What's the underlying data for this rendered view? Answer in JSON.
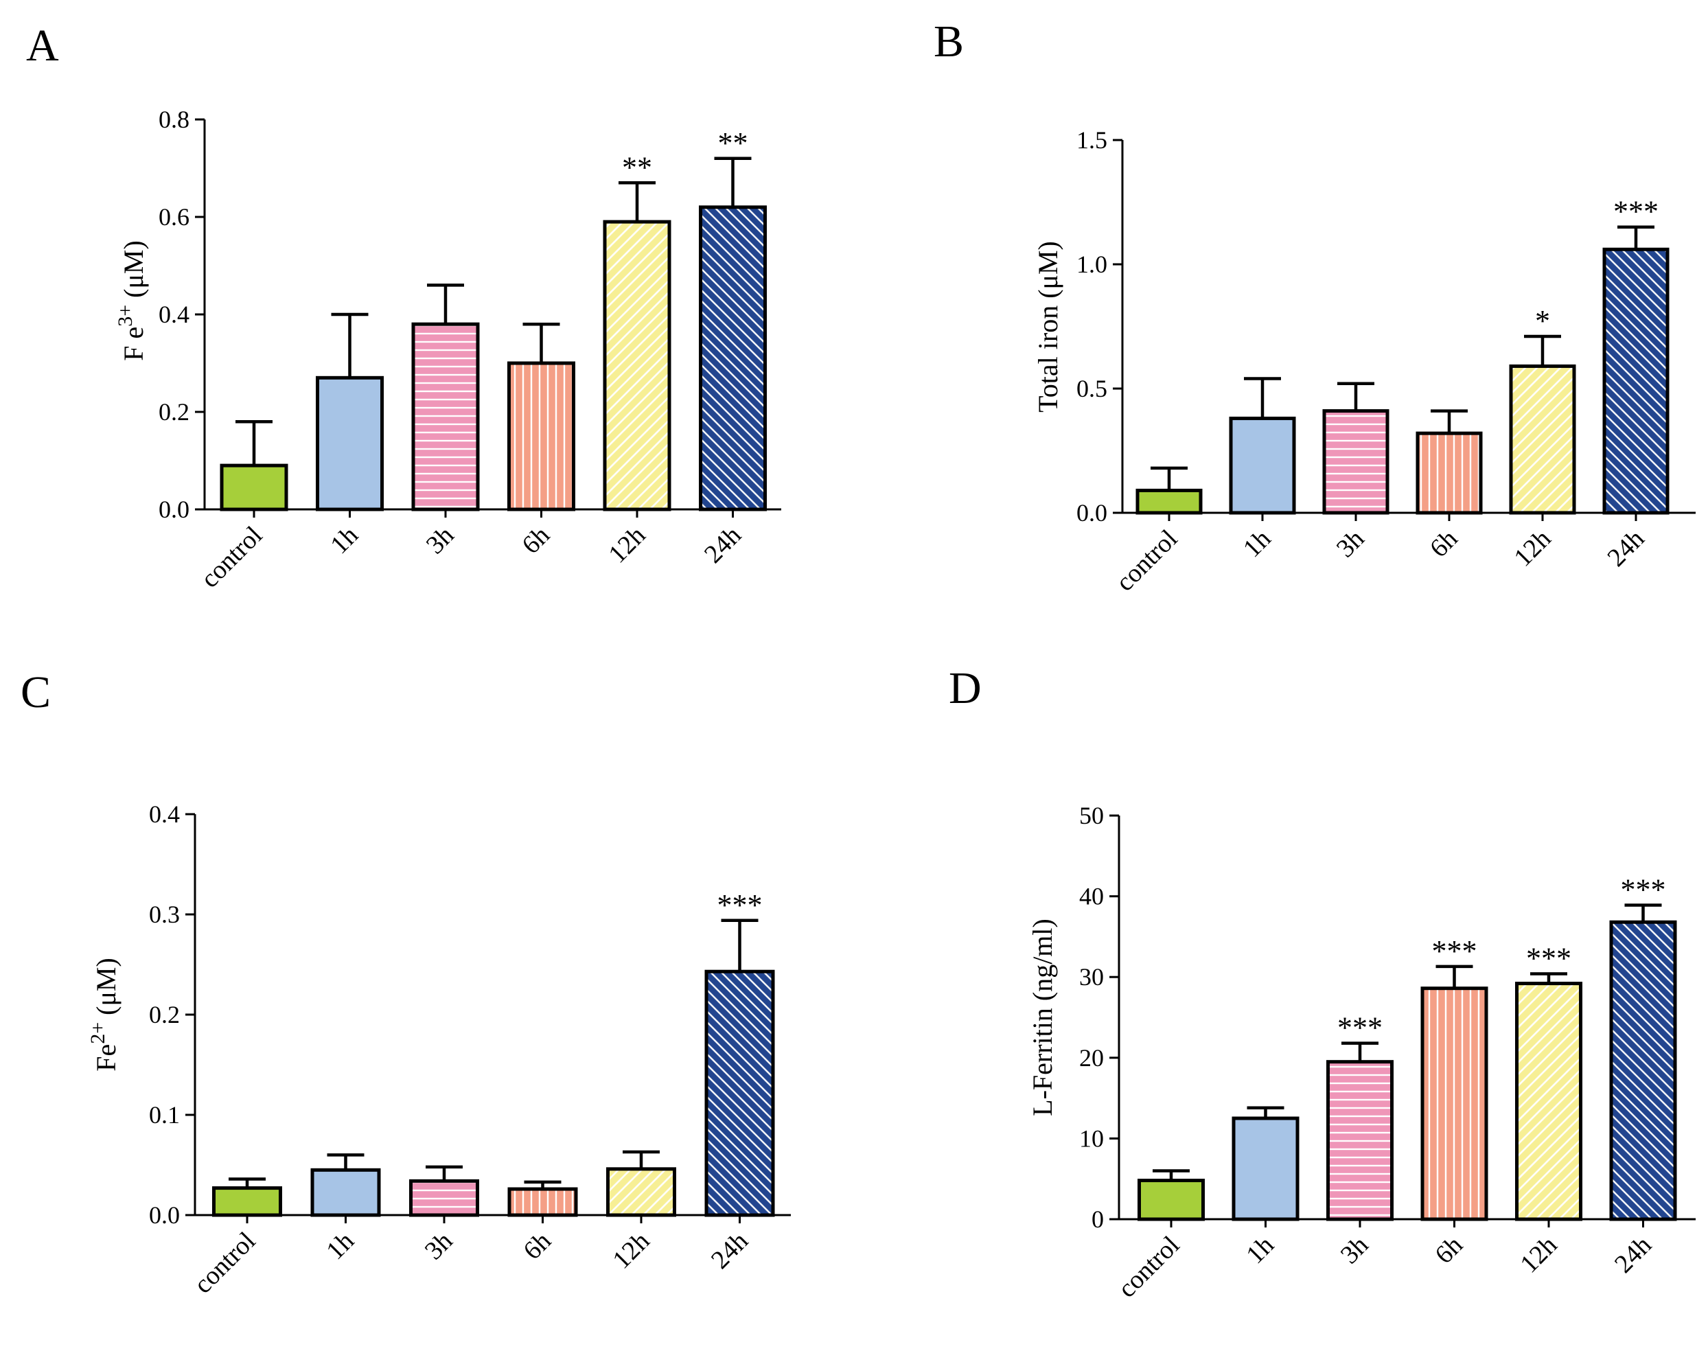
{
  "chart_data": [
    {
      "panel": "A",
      "type": "bar",
      "categories": [
        "control",
        "1h",
        "3h",
        "6h",
        "12h",
        "24h"
      ],
      "values": [
        0.09,
        0.27,
        0.38,
        0.3,
        0.59,
        0.62
      ],
      "errors": [
        0.09,
        0.13,
        0.08,
        0.08,
        0.08,
        0.1
      ],
      "significance": [
        "",
        "",
        "",
        "",
        "**",
        "**"
      ],
      "ylabel": {
        "base": "F e",
        "sup": "3+",
        "unit": " (μM)"
      },
      "ylim": [
        0,
        0.8
      ],
      "yticks": [
        "0.0",
        "0.2",
        "0.4",
        "0.6",
        "0.8"
      ]
    },
    {
      "panel": "B",
      "type": "bar",
      "categories": [
        "control",
        "1h",
        "3h",
        "6h",
        "12h",
        "24h"
      ],
      "values": [
        0.09,
        0.38,
        0.41,
        0.32,
        0.59,
        1.06
      ],
      "errors": [
        0.09,
        0.16,
        0.11,
        0.09,
        0.12,
        0.09
      ],
      "significance": [
        "",
        "",
        "",
        "",
        "*",
        "***"
      ],
      "ylabel": {
        "base": "Total iron (μM)",
        "sup": "",
        "unit": ""
      },
      "ylim": [
        0,
        1.5
      ],
      "yticks": [
        "0.0",
        "0.5",
        "1.0",
        "1.5"
      ]
    },
    {
      "panel": "C",
      "type": "bar",
      "categories": [
        "control",
        "1h",
        "3h",
        "6h",
        "12h",
        "24h"
      ],
      "values": [
        0.027,
        0.045,
        0.034,
        0.026,
        0.046,
        0.243
      ],
      "errors": [
        0.009,
        0.015,
        0.014,
        0.007,
        0.017,
        0.051
      ],
      "significance": [
        "",
        "",
        "",
        "",
        "",
        "***"
      ],
      "ylabel": {
        "base": "Fe",
        "sup": "2+",
        "unit": " (μM)"
      },
      "ylim": [
        0,
        0.4
      ],
      "yticks": [
        "0.0",
        "0.1",
        "0.2",
        "0.3",
        "0.4"
      ]
    },
    {
      "panel": "D",
      "type": "bar",
      "categories": [
        "control",
        "1h",
        "3h",
        "6h",
        "12h",
        "24h"
      ],
      "values": [
        4.8,
        12.5,
        19.5,
        28.6,
        29.2,
        36.8
      ],
      "errors": [
        1.2,
        1.3,
        2.3,
        2.7,
        1.2,
        2.1
      ],
      "significance": [
        "",
        "",
        "***",
        "***",
        "***",
        "***"
      ],
      "ylabel": {
        "base": "L-Ferritin (ng/ml)",
        "sup": "",
        "unit": ""
      },
      "ylim": [
        0,
        50
      ],
      "yticks": [
        "0",
        "10",
        "20",
        "30",
        "40",
        "50"
      ]
    }
  ],
  "colors": {
    "control": "#a6cf3a",
    "1h": "#a7c4e6",
    "3h": "#ef96b8",
    "6h": "#f49f86",
    "12h": "#f7ef95",
    "24h": "#22458f"
  },
  "patterns": [
    "solid",
    "solid",
    "horizontal-lines",
    "vertical-lines",
    "diagonal-lines",
    "diagonal-lines"
  ]
}
